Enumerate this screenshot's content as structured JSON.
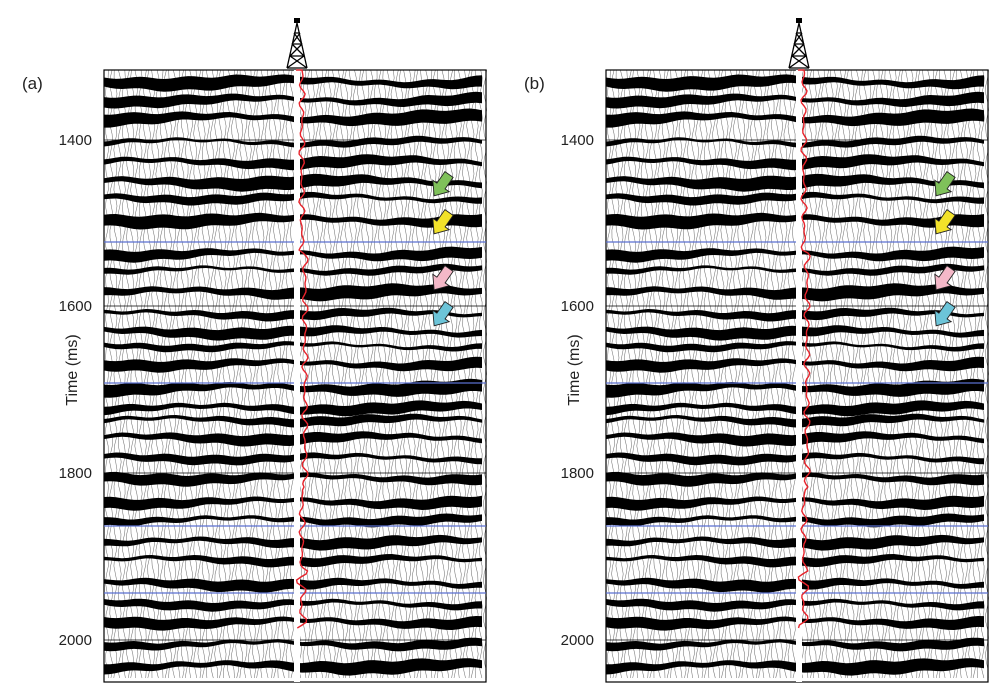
{
  "figure": {
    "panels": [
      {
        "label": "(a)",
        "id": "a"
      },
      {
        "label": "(b)",
        "id": "b"
      }
    ],
    "y_axis": {
      "label": "Time (ms)",
      "ticks": [
        "1400",
        "1600",
        "1800",
        "2000"
      ]
    },
    "arrow_colors": [
      "#7fc15a",
      "#f2e22a",
      "#f4b8c8",
      "#6cc4d8"
    ],
    "horizon_color": "#5a6fd0",
    "well_curve_color": "#e8232b",
    "icons": [
      "drilling-rig-icon",
      "arrow-icon"
    ]
  }
}
